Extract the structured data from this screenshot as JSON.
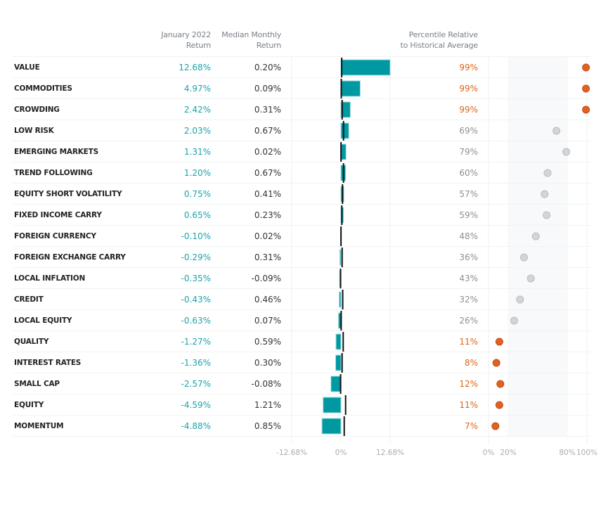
{
  "headers": {
    "jan_line1": "January 2022",
    "jan_line2": "Return",
    "med_line1": "Median Monthly",
    "med_line2": "Return",
    "pct_line1": "Percentile Relative",
    "pct_line2": "to Historical Average"
  },
  "colors": {
    "bar": "#0099a1",
    "bar_edge": "#9fdde0",
    "median_marker": "#111111",
    "return_text": "#1aa3a8",
    "extreme": "#e06418",
    "extreme_stroke": "#c9442a",
    "normal_dot": "#d3d5d9",
    "normal_dot_stroke": "#b9bcc1",
    "band": "#f7f9fb"
  },
  "chart_data": [
    {
      "type": "bar",
      "title": "January 2022 Return vs Median Monthly Return",
      "orientation": "horizontal",
      "categories": [
        "VALUE",
        "COMMODITIES",
        "CROWDING",
        "LOW RISK",
        "EMERGING MARKETS",
        "TREND FOLLOWING",
        "EQUITY SHORT VOLATILITY",
        "FIXED INCOME CARRY",
        "FOREIGN CURRENCY",
        "FOREIGN EXCHANGE CARRY",
        "LOCAL INFLATION",
        "CREDIT",
        "LOCAL EQUITY",
        "QUALITY",
        "INTEREST RATES",
        "SMALL CAP",
        "EQUITY",
        "MOMENTUM"
      ],
      "series": [
        {
          "name": "January 2022 Return",
          "values": [
            12.68,
            4.97,
            2.42,
            2.03,
            1.31,
            1.2,
            0.75,
            0.65,
            -0.1,
            -0.29,
            -0.35,
            -0.43,
            -0.63,
            -1.27,
            -1.36,
            -2.57,
            -4.59,
            -4.88
          ]
        },
        {
          "name": "Median Monthly Return",
          "values": [
            0.2,
            0.09,
            0.31,
            0.67,
            0.02,
            0.67,
            0.41,
            0.23,
            0.02,
            0.31,
            -0.09,
            0.46,
            0.07,
            0.59,
            0.3,
            -0.08,
            1.21,
            0.85
          ]
        }
      ],
      "xlim": [
        -12.68,
        12.68
      ],
      "xticks": [
        "-12.68%",
        "0%",
        "12.68%"
      ],
      "grid": true
    },
    {
      "type": "scatter",
      "title": "Percentile Relative to Historical Average",
      "categories": [
        "VALUE",
        "COMMODITIES",
        "CROWDING",
        "LOW RISK",
        "EMERGING MARKETS",
        "TREND FOLLOWING",
        "EQUITY SHORT VOLATILITY",
        "FIXED INCOME CARRY",
        "FOREIGN CURRENCY",
        "FOREIGN EXCHANGE CARRY",
        "LOCAL INFLATION",
        "CREDIT",
        "LOCAL EQUITY",
        "QUALITY",
        "INTEREST RATES",
        "SMALL CAP",
        "EQUITY",
        "MOMENTUM"
      ],
      "values": [
        99,
        99,
        99,
        69,
        79,
        60,
        57,
        59,
        48,
        36,
        43,
        32,
        26,
        11,
        8,
        12,
        11,
        7
      ],
      "xlim": [
        0,
        100
      ],
      "xticks": [
        "0%",
        "20%",
        "80%",
        "100%"
      ],
      "shaded_band": [
        20,
        80
      ],
      "grid": true
    }
  ],
  "rows": [
    {
      "name": "VALUE",
      "jan": "12.68%",
      "med": "0.20%",
      "pct": "99%"
    },
    {
      "name": "COMMODITIES",
      "jan": "4.97%",
      "med": "0.09%",
      "pct": "99%"
    },
    {
      "name": "CROWDING",
      "jan": "2.42%",
      "med": "0.31%",
      "pct": "99%"
    },
    {
      "name": "LOW RISK",
      "jan": "2.03%",
      "med": "0.67%",
      "pct": "69%"
    },
    {
      "name": "EMERGING MARKETS",
      "jan": "1.31%",
      "med": "0.02%",
      "pct": "79%"
    },
    {
      "name": "TREND FOLLOWING",
      "jan": "1.20%",
      "med": "0.67%",
      "pct": "60%"
    },
    {
      "name": "EQUITY SHORT VOLATILITY",
      "jan": "0.75%",
      "med": "0.41%",
      "pct": "57%"
    },
    {
      "name": "FIXED INCOME CARRY",
      "jan": "0.65%",
      "med": "0.23%",
      "pct": "59%"
    },
    {
      "name": "FOREIGN CURRENCY",
      "jan": "-0.10%",
      "med": "0.02%",
      "pct": "48%"
    },
    {
      "name": "FOREIGN EXCHANGE CARRY",
      "jan": "-0.29%",
      "med": "0.31%",
      "pct": "36%"
    },
    {
      "name": "LOCAL INFLATION",
      "jan": "-0.35%",
      "med": "-0.09%",
      "pct": "43%"
    },
    {
      "name": "CREDIT",
      "jan": "-0.43%",
      "med": "0.46%",
      "pct": "32%"
    },
    {
      "name": "LOCAL EQUITY",
      "jan": "-0.63%",
      "med": "0.07%",
      "pct": "26%"
    },
    {
      "name": "QUALITY",
      "jan": "-1.27%",
      "med": "0.59%",
      "pct": "11%"
    },
    {
      "name": "INTEREST RATES",
      "jan": "-1.36%",
      "med": "0.30%",
      "pct": "8%"
    },
    {
      "name": "SMALL CAP",
      "jan": "-2.57%",
      "med": "-0.08%",
      "pct": "12%"
    },
    {
      "name": "EQUITY",
      "jan": "-4.59%",
      "med": "1.21%",
      "pct": "11%"
    },
    {
      "name": "MOMENTUM",
      "jan": "-4.88%",
      "med": "0.85%",
      "pct": "7%"
    }
  ]
}
